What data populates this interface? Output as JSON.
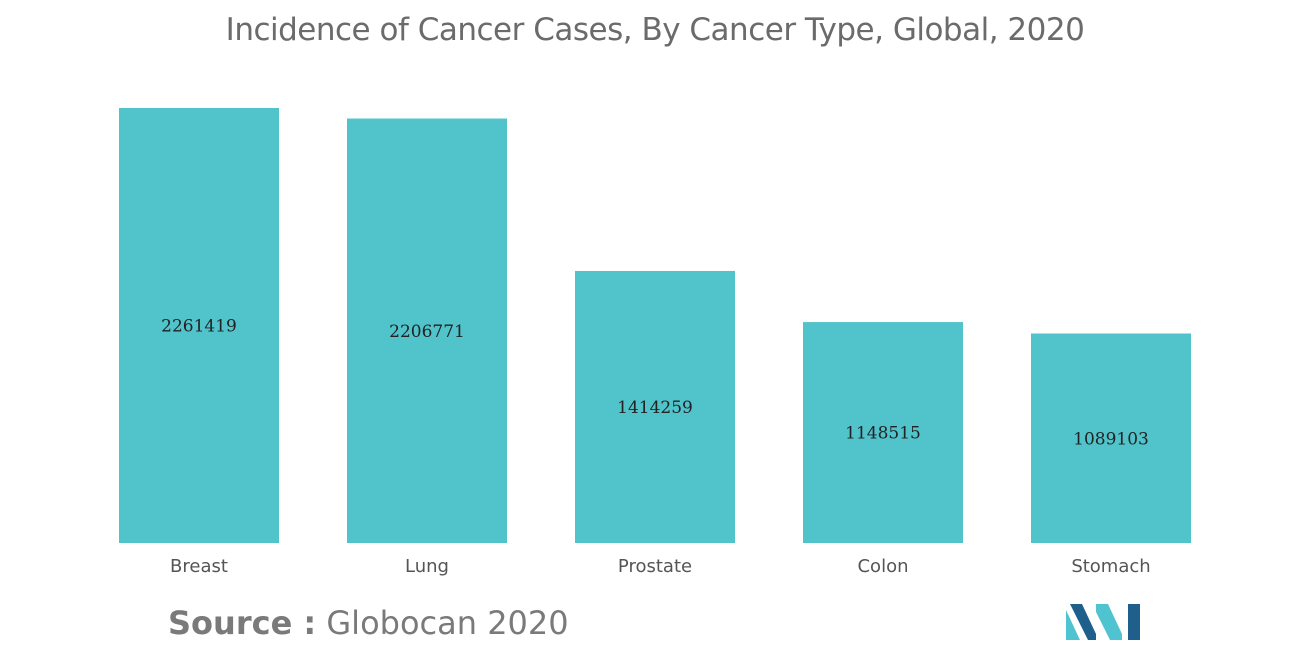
{
  "title": "Incidence of Cancer Cases, By Cancer Type, Global, 2020",
  "source": {
    "label": "Source :",
    "text": " Globocan 2020"
  },
  "colors": {
    "bar": "#51c3cb",
    "title": "#6b6b6b",
    "tick": "#555555",
    "value": "#222222",
    "source": "#7a7a7a",
    "logo_dark": "#1f5f8b",
    "logo_light": "#4fc3d0"
  },
  "icons": {
    "logo": "mordor-intelligence-logo-icon"
  },
  "chart_data": {
    "type": "bar",
    "title": "Incidence of Cancer Cases, By Cancer Type, Global, 2020",
    "xlabel": "",
    "ylabel": "",
    "categories": [
      "Breast",
      "Lung",
      "Prostate",
      "Colon",
      "Stomach"
    ],
    "values": [
      2261419,
      2206771,
      1414259,
      1148515,
      1089103
    ],
    "ylim": [
      0,
      2261419
    ],
    "grid": false,
    "legend": "none"
  }
}
